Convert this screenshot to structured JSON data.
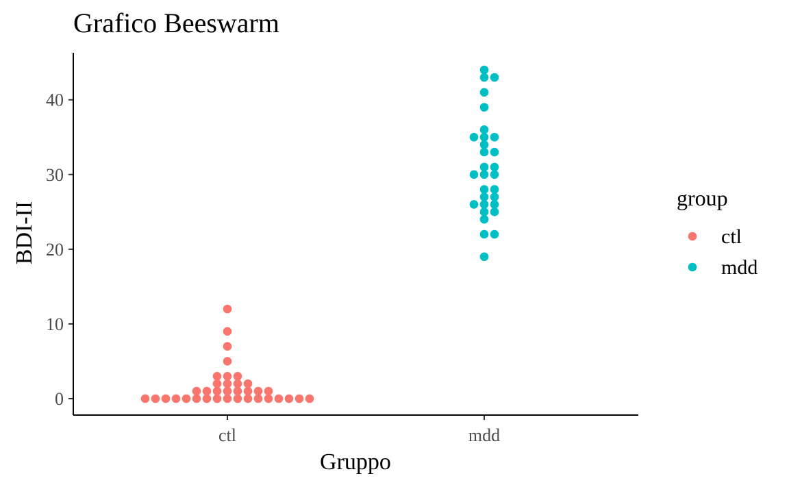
{
  "chart_data": {
    "type": "scatter",
    "title": "Grafico Beeswarm",
    "xlabel": "Gruppo",
    "ylabel": "BDI-II",
    "categories": [
      "ctl",
      "mdd"
    ],
    "ylim": [
      -2.2,
      46.3
    ],
    "yticks": [
      0,
      10,
      20,
      30,
      40
    ],
    "grid": false,
    "legend": {
      "title": "group",
      "position": "right"
    },
    "series": [
      {
        "name": "ctl",
        "color": "#F8766D",
        "points": [
          [
            -8,
            0
          ],
          [
            -7,
            0
          ],
          [
            -6,
            0
          ],
          [
            -5,
            0
          ],
          [
            -4,
            0
          ],
          [
            -3,
            0
          ],
          [
            -2,
            0
          ],
          [
            -1,
            0
          ],
          [
            0,
            0
          ],
          [
            1,
            0
          ],
          [
            2,
            0
          ],
          [
            3,
            0
          ],
          [
            4,
            0
          ],
          [
            5,
            0
          ],
          [
            6,
            0
          ],
          [
            7,
            0
          ],
          [
            8,
            0
          ],
          [
            -3,
            1
          ],
          [
            -2,
            1
          ],
          [
            -1,
            1
          ],
          [
            0,
            1
          ],
          [
            1,
            1
          ],
          [
            2,
            1
          ],
          [
            3,
            1
          ],
          [
            4,
            1
          ],
          [
            -1,
            2
          ],
          [
            0,
            2
          ],
          [
            1,
            2
          ],
          [
            2,
            2
          ],
          [
            -1,
            3
          ],
          [
            0,
            3
          ],
          [
            1,
            3
          ],
          [
            0,
            5
          ],
          [
            0,
            7
          ],
          [
            0,
            9
          ],
          [
            0,
            12
          ]
        ]
      },
      {
        "name": "mdd",
        "color": "#00BFC4",
        "points": [
          [
            0,
            19
          ],
          [
            0,
            22
          ],
          [
            1,
            22
          ],
          [
            0,
            24
          ],
          [
            0,
            25
          ],
          [
            1,
            25
          ],
          [
            -1,
            26
          ],
          [
            0,
            26
          ],
          [
            1,
            26
          ],
          [
            0,
            27
          ],
          [
            1,
            27
          ],
          [
            0,
            28
          ],
          [
            1,
            28
          ],
          [
            -1,
            30
          ],
          [
            0,
            30
          ],
          [
            1,
            30
          ],
          [
            0,
            31
          ],
          [
            1,
            31
          ],
          [
            0,
            33
          ],
          [
            1,
            33
          ],
          [
            0,
            34
          ],
          [
            -1,
            35
          ],
          [
            0,
            35
          ],
          [
            1,
            35
          ],
          [
            0,
            36
          ],
          [
            0,
            39
          ],
          [
            0,
            41
          ],
          [
            0,
            43
          ],
          [
            1,
            43
          ],
          [
            0,
            44
          ]
        ]
      }
    ]
  }
}
